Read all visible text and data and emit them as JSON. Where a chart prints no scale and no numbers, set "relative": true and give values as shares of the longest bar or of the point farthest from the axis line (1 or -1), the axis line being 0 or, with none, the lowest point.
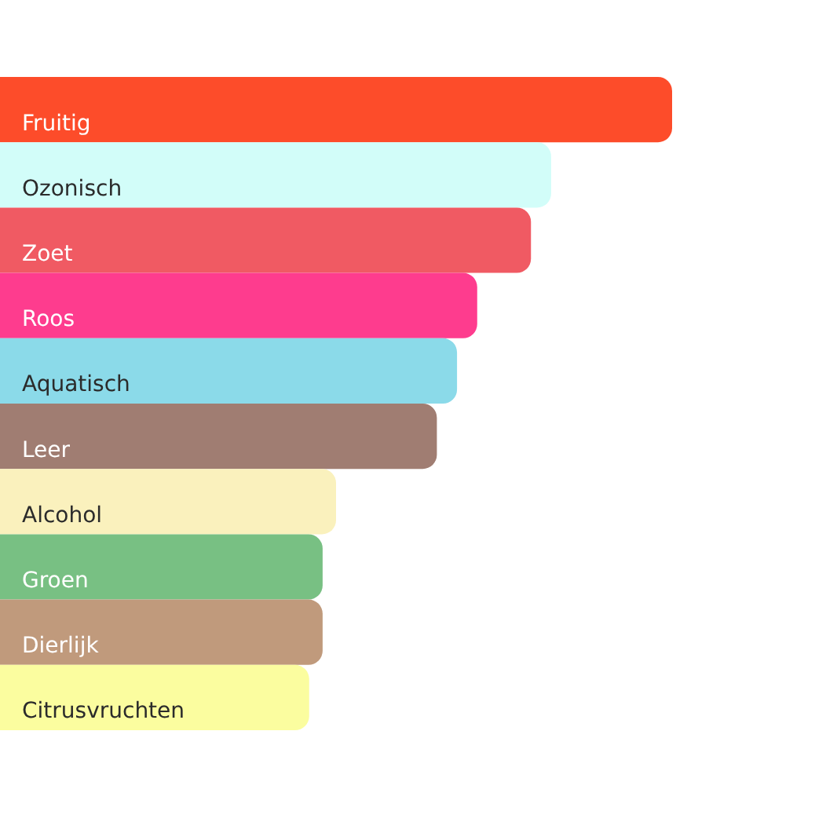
{
  "chart_data": {
    "type": "bar",
    "orientation": "horizontal",
    "relative": true,
    "categories": [
      "Fruitig",
      "Ozonisch",
      "Zoet",
      "Roos",
      "Aquatisch",
      "Leer",
      "Alcohol",
      "Groen",
      "Dierlijk",
      "Citrusvruchten"
    ],
    "values": [
      1,
      0.82,
      0.79,
      0.71,
      0.68,
      0.65,
      0.5,
      0.48,
      0.48,
      0.46
    ],
    "colors": [
      "#fd4c2a",
      "#d2fdf9",
      "#f05a63",
      "#fe3c8e",
      "#8bdae9",
      "#a07d72",
      "#faf1bd",
      "#78c083",
      "#c09a7c",
      "#fbfd9f"
    ]
  }
}
